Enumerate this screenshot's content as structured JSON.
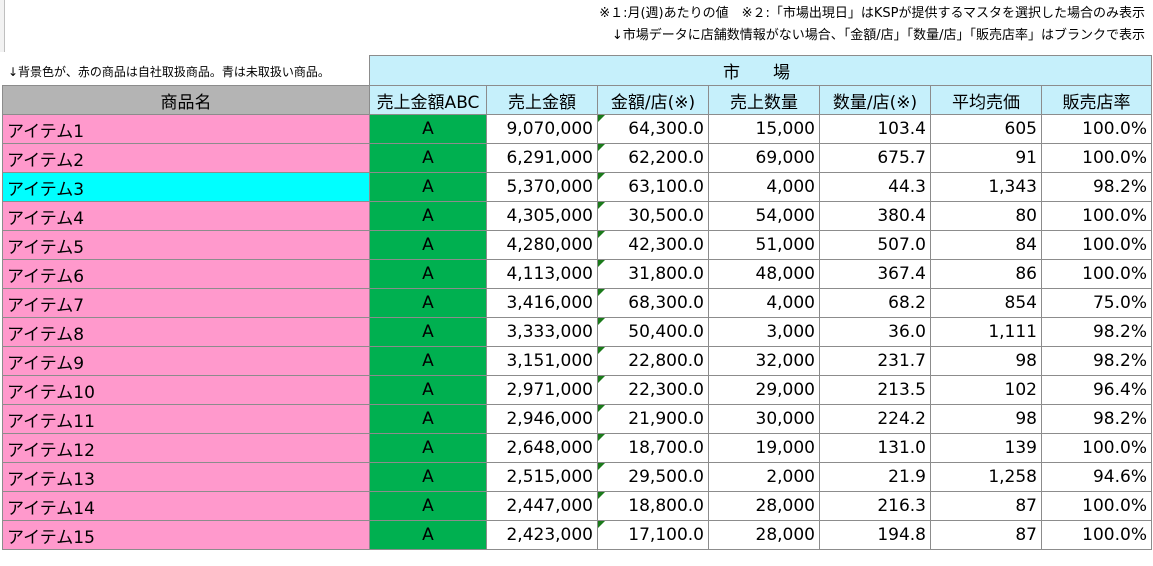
{
  "notes": {
    "top_right_1": "※１:月(週)あたりの値　※２:「市場出現日」はKSPが提供するマスタを選択した場合のみ表示",
    "top_right_2": "↓市場データに店舗数情報がない場合、「金額/店」「数量/店」「販売店率」はブランクで表示",
    "legend": "↓背景色が、赤の商品は自社取扱商品。青は未取扱い商品。"
  },
  "table": {
    "group_header": "市　場",
    "columns": [
      "商品名",
      "売上金額ABC",
      "売上金額",
      "金額/店(※)",
      "売上数量",
      "数量/店(※)",
      "平均売価",
      "販売店率"
    ],
    "rows": [
      {
        "name": "アイテム1",
        "abc": "A",
        "sales": "9,070,000",
        "per_store": "64,300.0",
        "qty": "15,000",
        "qty_store": "103.4",
        "avg": "605",
        "rate": "100.0%",
        "color": "#ff99cc"
      },
      {
        "name": "アイテム2",
        "abc": "A",
        "sales": "6,291,000",
        "per_store": "62,200.0",
        "qty": "69,000",
        "qty_store": "675.7",
        "avg": "91",
        "rate": "100.0%",
        "color": "#ff99cc"
      },
      {
        "name": "アイテム3",
        "abc": "A",
        "sales": "5,370,000",
        "per_store": "63,100.0",
        "qty": "4,000",
        "qty_store": "44.3",
        "avg": "1,343",
        "rate": "98.2%",
        "color": "#00ffff"
      },
      {
        "name": "アイテム4",
        "abc": "A",
        "sales": "4,305,000",
        "per_store": "30,500.0",
        "qty": "54,000",
        "qty_store": "380.4",
        "avg": "80",
        "rate": "100.0%",
        "color": "#ff99cc"
      },
      {
        "name": "アイテム5",
        "abc": "A",
        "sales": "4,280,000",
        "per_store": "42,300.0",
        "qty": "51,000",
        "qty_store": "507.0",
        "avg": "84",
        "rate": "100.0%",
        "color": "#ff99cc"
      },
      {
        "name": "アイテム6",
        "abc": "A",
        "sales": "4,113,000",
        "per_store": "31,800.0",
        "qty": "48,000",
        "qty_store": "367.4",
        "avg": "86",
        "rate": "100.0%",
        "color": "#ff99cc"
      },
      {
        "name": "アイテム7",
        "abc": "A",
        "sales": "3,416,000",
        "per_store": "68,300.0",
        "qty": "4,000",
        "qty_store": "68.2",
        "avg": "854",
        "rate": "75.0%",
        "color": "#ff99cc"
      },
      {
        "name": "アイテム8",
        "abc": "A",
        "sales": "3,333,000",
        "per_store": "50,400.0",
        "qty": "3,000",
        "qty_store": "36.0",
        "avg": "1,111",
        "rate": "98.2%",
        "color": "#ff99cc"
      },
      {
        "name": "アイテム9",
        "abc": "A",
        "sales": "3,151,000",
        "per_store": "22,800.0",
        "qty": "32,000",
        "qty_store": "231.7",
        "avg": "98",
        "rate": "98.2%",
        "color": "#ff99cc"
      },
      {
        "name": "アイテム10",
        "abc": "A",
        "sales": "2,971,000",
        "per_store": "22,300.0",
        "qty": "29,000",
        "qty_store": "213.5",
        "avg": "102",
        "rate": "96.4%",
        "color": "#ff99cc"
      },
      {
        "name": "アイテム11",
        "abc": "A",
        "sales": "2,946,000",
        "per_store": "21,900.0",
        "qty": "30,000",
        "qty_store": "224.2",
        "avg": "98",
        "rate": "98.2%",
        "color": "#ff99cc"
      },
      {
        "name": "アイテム12",
        "abc": "A",
        "sales": "2,648,000",
        "per_store": "18,700.0",
        "qty": "19,000",
        "qty_store": "131.0",
        "avg": "139",
        "rate": "100.0%",
        "color": "#ff99cc"
      },
      {
        "name": "アイテム13",
        "abc": "A",
        "sales": "2,515,000",
        "per_store": "29,500.0",
        "qty": "2,000",
        "qty_store": "21.9",
        "avg": "1,258",
        "rate": "94.6%",
        "color": "#ff99cc"
      },
      {
        "name": "アイテム14",
        "abc": "A",
        "sales": "2,447,000",
        "per_store": "18,800.0",
        "qty": "28,000",
        "qty_store": "216.3",
        "avg": "87",
        "rate": "100.0%",
        "color": "#ff99cc"
      },
      {
        "name": "アイテム15",
        "abc": "A",
        "sales": "2,423,000",
        "per_store": "17,100.0",
        "qty": "28,000",
        "qty_store": "194.8",
        "avg": "87",
        "rate": "100.0%",
        "color": "#ff99cc"
      }
    ]
  },
  "colors": {
    "own_item": "#ff99cc",
    "not_handled_item": "#00ffff",
    "abc_cell": "#00b050",
    "header": "#c6f0fb",
    "name_header": "#b4b4b4"
  }
}
